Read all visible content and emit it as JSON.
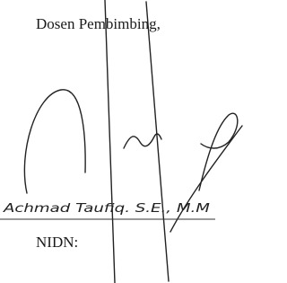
{
  "signature_block": {
    "role": "Dosen Pembimbing,",
    "name": "Achmad Taufiq. S.E., M.M",
    "id_label": "NIDN:"
  }
}
